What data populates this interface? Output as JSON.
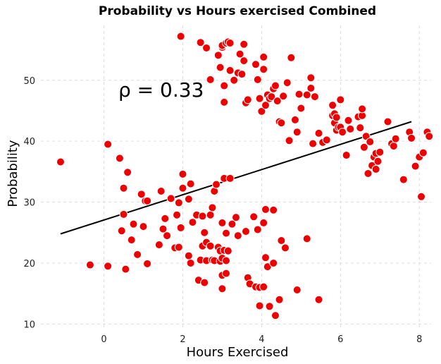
{
  "chart_data": {
    "type": "scatter",
    "title": "Probability vs Hours exercised Combined",
    "xlabel": "Hours Exercised",
    "ylabel": "Probability",
    "xlim": [
      -1.6,
      8.3
    ],
    "ylim": [
      9,
      59
    ],
    "xticks": [
      0,
      2,
      4,
      6,
      8
    ],
    "yticks": [
      10,
      20,
      30,
      40,
      50
    ],
    "grid": true,
    "annotation": "ρ = 0.33",
    "marker_color": "#ee0000",
    "line_color": "#000000",
    "trendline": {
      "x": [
        -1.1,
        7.8
      ],
      "y": [
        24.8,
        43.2
      ]
    },
    "points": [
      [
        -1.1,
        36.6
      ],
      [
        -0.35,
        19.7
      ],
      [
        0.1,
        39.5
      ],
      [
        0.1,
        19.5
      ],
      [
        0.4,
        37.2
      ],
      [
        0.45,
        25.3
      ],
      [
        0.5,
        28.0
      ],
      [
        0.5,
        32.3
      ],
      [
        0.55,
        19.0
      ],
      [
        0.6,
        34.9
      ],
      [
        0.7,
        23.8
      ],
      [
        0.75,
        26.4
      ],
      [
        0.85,
        21.4
      ],
      [
        0.95,
        31.3
      ],
      [
        1.0,
        26.0
      ],
      [
        1.05,
        30.2
      ],
      [
        1.1,
        19.9
      ],
      [
        1.1,
        30.2
      ],
      [
        1.4,
        23.0
      ],
      [
        1.45,
        31.8
      ],
      [
        1.5,
        25.6
      ],
      [
        1.55,
        27.3
      ],
      [
        1.6,
        24.5
      ],
      [
        1.7,
        30.6
      ],
      [
        1.8,
        22.5
      ],
      [
        1.85,
        27.9
      ],
      [
        1.9,
        22.6
      ],
      [
        1.9,
        29.9
      ],
      [
        1.95,
        25.8
      ],
      [
        2.0,
        32.3
      ],
      [
        2.0,
        34.6
      ],
      [
        2.15,
        21.2
      ],
      [
        2.15,
        30.5
      ],
      [
        2.2,
        20.0
      ],
      [
        2.2,
        33.0
      ],
      [
        2.25,
        26.7
      ],
      [
        2.35,
        27.9
      ],
      [
        2.4,
        17.2
      ],
      [
        2.45,
        20.5
      ],
      [
        2.5,
        22.8
      ],
      [
        2.5,
        27.7
      ],
      [
        2.55,
        16.8
      ],
      [
        2.55,
        25.0
      ],
      [
        2.6,
        20.4
      ],
      [
        2.6,
        23.4
      ],
      [
        2.7,
        22.8
      ],
      [
        2.7,
        27.9
      ],
      [
        2.75,
        20.5
      ],
      [
        2.75,
        29.1
      ],
      [
        2.8,
        20.4
      ],
      [
        2.8,
        31.8
      ],
      [
        2.85,
        32.9
      ],
      [
        2.9,
        22.6
      ],
      [
        2.95,
        20.3
      ],
      [
        2.95,
        22.0
      ],
      [
        3.0,
        15.8
      ],
      [
        3.0,
        18.0
      ],
      [
        3.0,
        20.8
      ],
      [
        3.0,
        26.6
      ],
      [
        3.05,
        22.1
      ],
      [
        3.05,
        33.9
      ],
      [
        3.1,
        18.3
      ],
      [
        3.1,
        20.4
      ],
      [
        3.1,
        24.9
      ],
      [
        3.15,
        22.0
      ],
      [
        3.2,
        33.9
      ],
      [
        3.25,
        26.4
      ],
      [
        3.35,
        27.5
      ],
      [
        3.4,
        24.5
      ],
      [
        3.6,
        25.2
      ],
      [
        3.65,
        17.6
      ],
      [
        3.7,
        16.6
      ],
      [
        3.8,
        27.6
      ],
      [
        3.85,
        16.1
      ],
      [
        3.9,
        25.5
      ],
      [
        3.95,
        13.0
      ],
      [
        3.95,
        16.0
      ],
      [
        4.05,
        16.1
      ],
      [
        4.05,
        26.6
      ],
      [
        4.1,
        28.8
      ],
      [
        4.1,
        20.9
      ],
      [
        4.15,
        19.4
      ],
      [
        4.2,
        12.9
      ],
      [
        4.3,
        20.0
      ],
      [
        4.3,
        28.7
      ],
      [
        4.35,
        11.4
      ],
      [
        4.45,
        14.0
      ],
      [
        4.5,
        23.7
      ],
      [
        4.6,
        22.5
      ],
      [
        4.9,
        15.6
      ],
      [
        5.15,
        24.0
      ],
      [
        5.45,
        14.0
      ],
      [
        1.95,
        57.2
      ],
      [
        2.45,
        56.2
      ],
      [
        2.6,
        55.3
      ],
      [
        2.7,
        50.1
      ],
      [
        2.9,
        54.1
      ],
      [
        2.95,
        52.1
      ],
      [
        3.0,
        55.4
      ],
      [
        3.0,
        55.7
      ],
      [
        3.05,
        49.1
      ],
      [
        3.05,
        46.4
      ],
      [
        3.1,
        56.1
      ],
      [
        3.15,
        56.3
      ],
      [
        3.2,
        56.1
      ],
      [
        3.2,
        51.6
      ],
      [
        3.3,
        50.0
      ],
      [
        3.4,
        51.2
      ],
      [
        3.45,
        54.3
      ],
      [
        3.5,
        51.0
      ],
      [
        3.55,
        53.2
      ],
      [
        3.55,
        55.9
      ],
      [
        3.6,
        46.3
      ],
      [
        3.65,
        46.8
      ],
      [
        3.85,
        52.6
      ],
      [
        3.9,
        50.1
      ],
      [
        3.95,
        47.0
      ],
      [
        4.0,
        44.9
      ],
      [
        4.05,
        51.8
      ],
      [
        4.05,
        53.8
      ],
      [
        4.1,
        45.9
      ],
      [
        4.15,
        47.6
      ],
      [
        4.2,
        47.0
      ],
      [
        4.25,
        47.3
      ],
      [
        4.3,
        48.6
      ],
      [
        4.35,
        49.1
      ],
      [
        4.4,
        46.6
      ],
      [
        4.45,
        43.2
      ],
      [
        4.5,
        43.0
      ],
      [
        4.55,
        47.4
      ],
      [
        4.65,
        49.6
      ],
      [
        4.7,
        40.1
      ],
      [
        4.75,
        53.7
      ],
      [
        4.85,
        43.5
      ],
      [
        4.9,
        41.5
      ],
      [
        4.95,
        47.7
      ],
      [
        5.0,
        45.4
      ],
      [
        5.15,
        47.6
      ],
      [
        5.25,
        50.4
      ],
      [
        5.25,
        48.7
      ],
      [
        5.3,
        39.6
      ],
      [
        5.35,
        47.3
      ],
      [
        5.45,
        41.3
      ],
      [
        5.55,
        39.8
      ],
      [
        5.65,
        40.2
      ],
      [
        5.8,
        44.2
      ],
      [
        5.8,
        45.9
      ],
      [
        5.85,
        44.5
      ],
      [
        5.85,
        43.0
      ],
      [
        5.9,
        41.8
      ],
      [
        5.9,
        43.9
      ],
      [
        5.95,
        42.3
      ],
      [
        6.0,
        46.8
      ],
      [
        6.0,
        42.3
      ],
      [
        6.05,
        41.5
      ],
      [
        6.15,
        37.7
      ],
      [
        6.2,
        43.4
      ],
      [
        6.25,
        42.0
      ],
      [
        6.45,
        44.0
      ],
      [
        6.5,
        42.2
      ],
      [
        6.55,
        44.2
      ],
      [
        6.55,
        45.3
      ],
      [
        6.6,
        39.0
      ],
      [
        6.65,
        40.8
      ],
      [
        6.7,
        34.7
      ],
      [
        6.75,
        39.9
      ],
      [
        6.8,
        36.0
      ],
      [
        6.85,
        37.4
      ],
      [
        6.9,
        38.0
      ],
      [
        6.9,
        35.4
      ],
      [
        6.95,
        36.7
      ],
      [
        7.0,
        38.2
      ],
      [
        7.2,
        43.2
      ],
      [
        7.3,
        39.6
      ],
      [
        7.35,
        39.2
      ],
      [
        7.4,
        40.4
      ],
      [
        7.6,
        33.7
      ],
      [
        7.75,
        41.5
      ],
      [
        7.8,
        40.5
      ],
      [
        7.9,
        35.9
      ],
      [
        8.0,
        37.4
      ],
      [
        8.05,
        30.9
      ],
      [
        8.1,
        38.1
      ],
      [
        8.2,
        41.5
      ],
      [
        8.25,
        40.8
      ]
    ]
  }
}
